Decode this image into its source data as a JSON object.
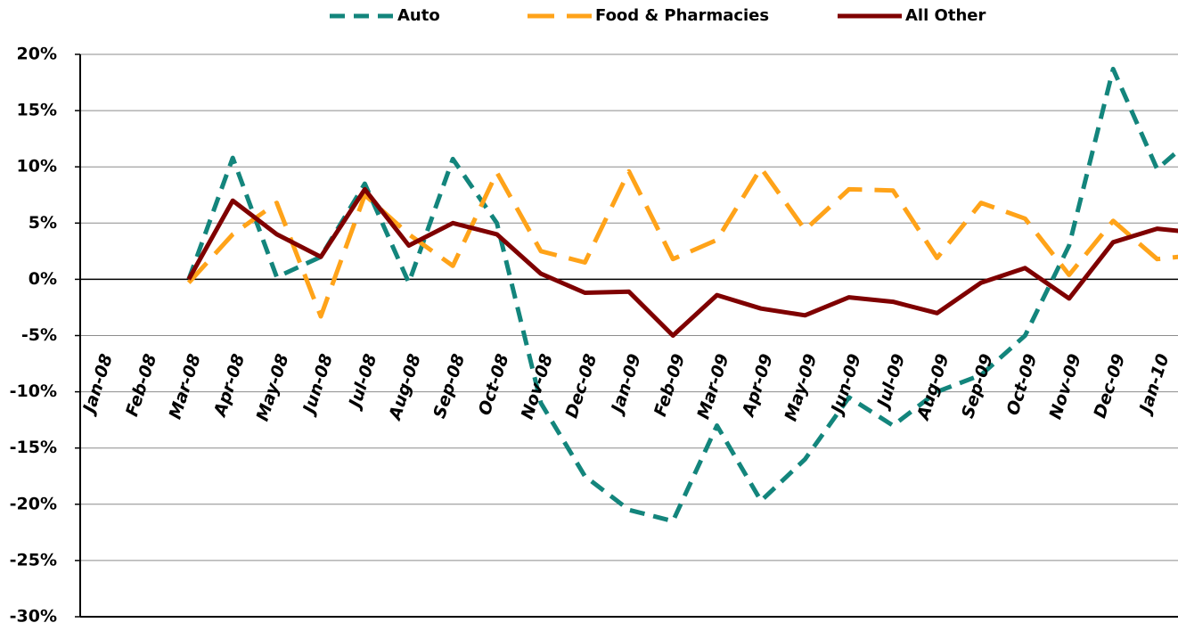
{
  "chart_data": {
    "type": "line",
    "categories": [
      "Jan-08",
      "Feb-08",
      "Mar-08",
      "Apr-08",
      "May-08",
      "Jun-08",
      "Jul-08",
      "Aug-08",
      "Sep-08",
      "Oct-08",
      "Nov-08",
      "Dec-08",
      "Jan-09",
      "Feb-09",
      "Mar-09",
      "Apr-09",
      "May-09",
      "Jun-09",
      "Jul-09",
      "Aug-09",
      "Sep-09",
      "Oct-09",
      "Nov-09",
      "Dec-09",
      "Jan-10",
      null
    ],
    "series": [
      {
        "name": "Auto",
        "color": "#13857c",
        "dash": true,
        "values": [
          null,
          null,
          0,
          10.8,
          0.2,
          2,
          8.5,
          -0.3,
          10.7,
          5,
          -11,
          -17.5,
          -20.5,
          -21.5,
          -13,
          -19.7,
          -16,
          -10.5,
          -13,
          -10,
          -8.5,
          -5,
          3,
          18.7,
          9.8,
          13.2
        ]
      },
      {
        "name": "Food & Pharmacies",
        "color": "#ffa319",
        "dash": true,
        "values": [
          null,
          null,
          -0.3,
          4,
          6.8,
          -3.3,
          7.5,
          4,
          1.2,
          9.5,
          2.5,
          1.5,
          9.6,
          1.8,
          3.5,
          9.9,
          4.4,
          8,
          7.9,
          1.9,
          6.8,
          5.4,
          0.4,
          5.2,
          1.8,
          2.2
        ]
      },
      {
        "name": "All Other",
        "color": "#7f0000",
        "dash": false,
        "values": [
          null,
          null,
          0,
          7,
          4,
          2,
          8,
          3,
          5,
          4,
          0.5,
          -1.2,
          -1.1,
          -5,
          -1.4,
          -2.6,
          -3.2,
          -1.6,
          -2,
          -3,
          -0.3,
          1,
          -1.7,
          3.3,
          4.5,
          4.1
        ]
      }
    ],
    "ylim": [
      -30,
      20
    ],
    "yticks": [
      {
        "value": -30,
        "label": "-30%"
      },
      {
        "value": -25,
        "label": "-25%"
      },
      {
        "value": -20,
        "label": "-20%"
      },
      {
        "value": -15,
        "label": "-15%"
      },
      {
        "value": -10,
        "label": "-10%"
      },
      {
        "value": -5,
        "label": "-5%"
      },
      {
        "value": 0,
        "label": "0%"
      },
      {
        "value": 5,
        "label": "5%"
      },
      {
        "value": 10,
        "label": "10%"
      },
      {
        "value": 15,
        "label": "15%"
      },
      {
        "value": 20,
        "label": "20%"
      }
    ],
    "grid": true,
    "legend": "top"
  }
}
